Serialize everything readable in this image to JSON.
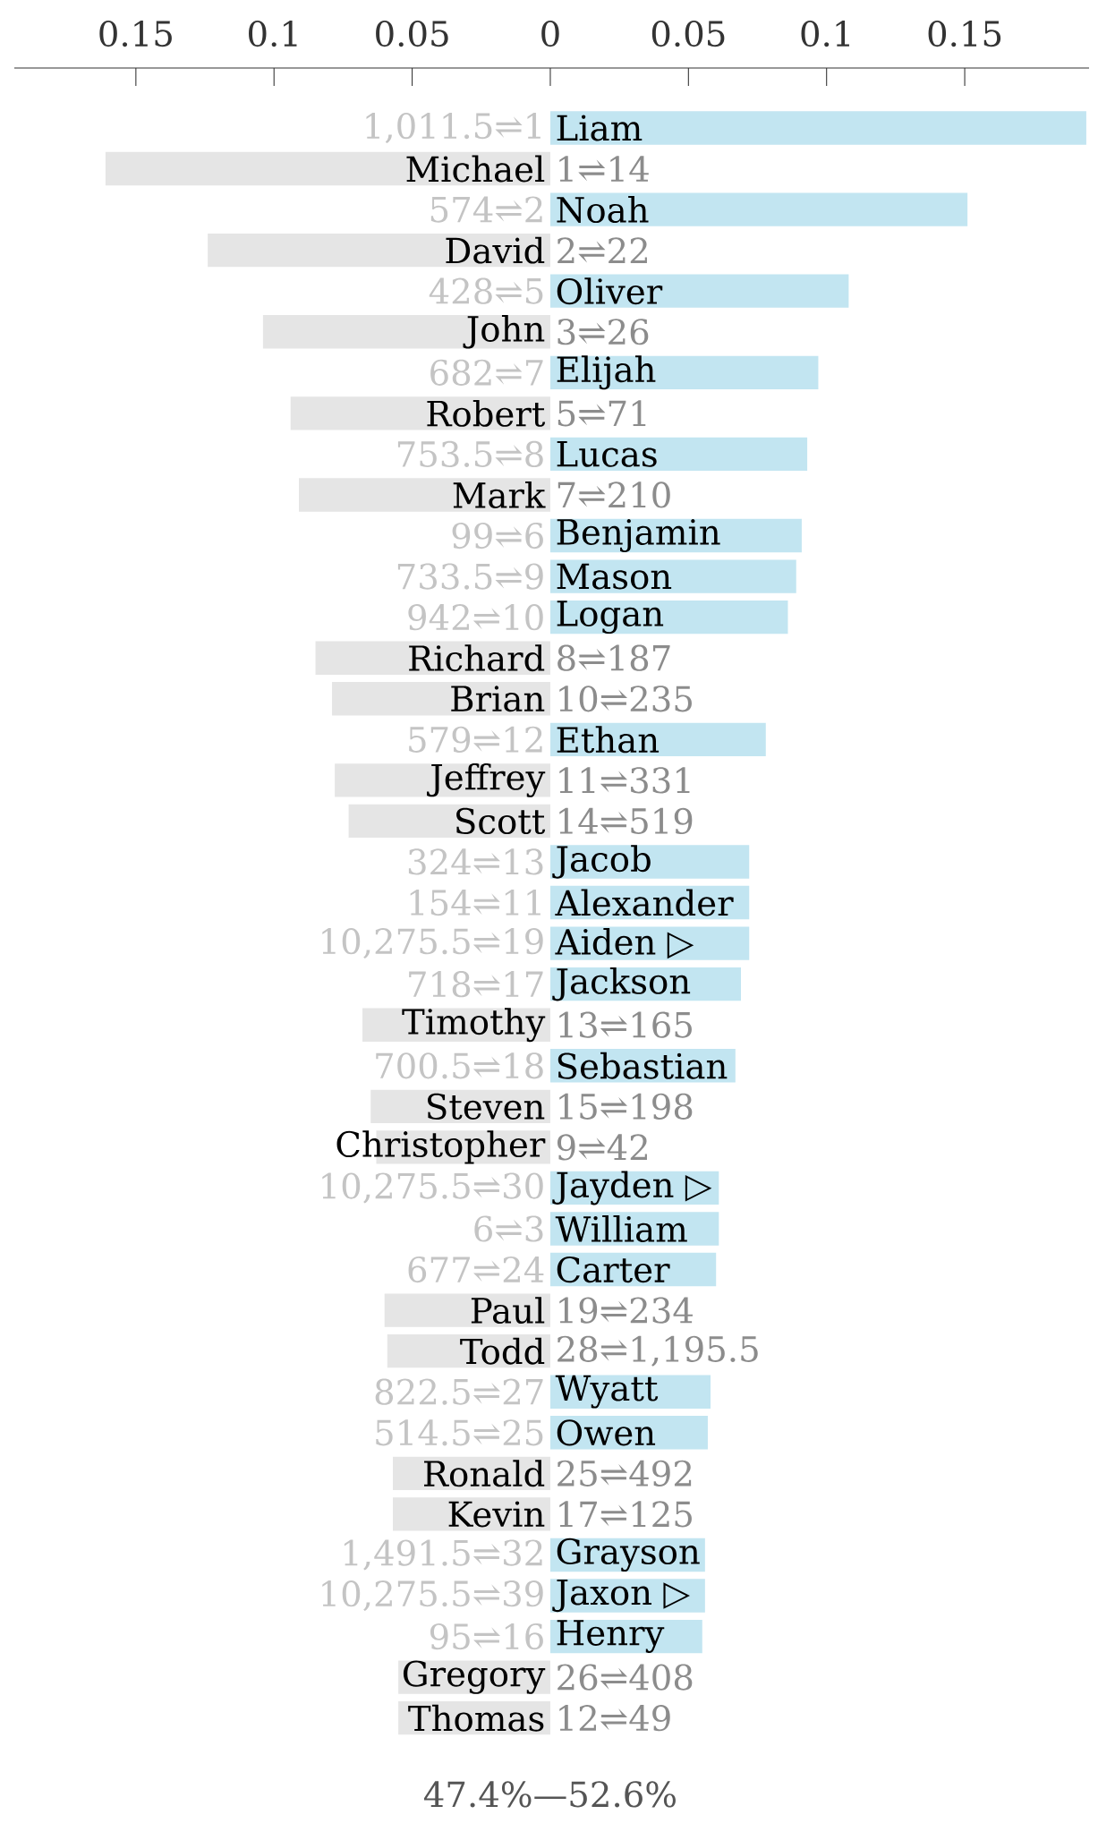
{
  "chart_data": {
    "type": "bar",
    "orientation": "horizontal",
    "categories": [
      "Liam",
      "Michael",
      "Noah",
      "David",
      "Oliver",
      "John",
      "Elijah",
      "Robert",
      "Lucas",
      "Mark",
      "Benjamin",
      "Mason",
      "Logan",
      "Richard",
      "Brian",
      "Ethan",
      "Jeffrey",
      "Scott",
      "Jacob",
      "Alexander",
      "Aiden ▷",
      "Jackson",
      "Timothy",
      "Sebastian",
      "Steven",
      "Christopher",
      "Jayden ▷",
      "William",
      "Carter",
      "Paul",
      "Todd",
      "Wyatt",
      "Owen",
      "Ronald",
      "Kevin",
      "Grayson",
      "Jaxon ▷",
      "Henry",
      "Gregory",
      "Thomas"
    ],
    "series": [
      {
        "color": "#e5e5e5",
        "values": [
          null,
          -0.161,
          null,
          -0.124,
          null,
          -0.104,
          null,
          -0.094,
          null,
          -0.091,
          null,
          null,
          null,
          -0.085,
          -0.079,
          null,
          -0.078,
          -0.073,
          null,
          null,
          null,
          null,
          -0.068,
          null,
          -0.065,
          -0.063,
          null,
          null,
          null,
          -0.06,
          -0.059,
          null,
          null,
          -0.057,
          -0.057,
          null,
          null,
          null,
          -0.055,
          -0.055
        ]
      },
      {
        "color": "#c2e5f1",
        "values": [
          0.194,
          null,
          0.151,
          null,
          0.108,
          null,
          0.097,
          null,
          0.093,
          null,
          0.091,
          0.089,
          0.086,
          null,
          null,
          0.078,
          null,
          null,
          0.072,
          0.072,
          0.072,
          0.069,
          null,
          0.067,
          null,
          null,
          0.061,
          0.061,
          0.06,
          null,
          null,
          0.058,
          0.057,
          null,
          null,
          0.056,
          0.056,
          0.055,
          null,
          null
        ]
      }
    ],
    "xlim": [
      -0.194,
      0.195
    ],
    "xticks": [
      {
        "value": -0.15,
        "label": "0.15"
      },
      {
        "value": -0.1,
        "label": "0.1"
      },
      {
        "value": -0.05,
        "label": "0.05"
      },
      0,
      0.05,
      0.1,
      0.15
    ],
    "annotations": [
      "1,011.5⇌1",
      "1⇌14",
      "574⇌2",
      "2⇌22",
      "428⇌5",
      "3⇌26",
      "682⇌7",
      "5⇌71",
      "753.5⇌8",
      "7⇌210",
      "99⇌6",
      "733.5⇌9",
      "942⇌10",
      "8⇌187",
      "10⇌235",
      "579⇌12",
      "11⇌331",
      "14⇌519",
      "324⇌13",
      "154⇌11",
      "10,275.5⇌19",
      "718⇌17",
      "13⇌165",
      "700.5⇌18",
      "15⇌198",
      "9⇌42",
      "10,275.5⇌30",
      "6⇌3",
      "677⇌24",
      "19⇌234",
      "28⇌1,195.5",
      "822.5⇌27",
      "514.5⇌25",
      "25⇌492",
      "17⇌125",
      "1,491.5⇌32",
      "10,275.5⇌39",
      "95⇌16",
      "26⇌408",
      "12⇌49",
      "47.4%—52.6%"
    ]
  }
}
